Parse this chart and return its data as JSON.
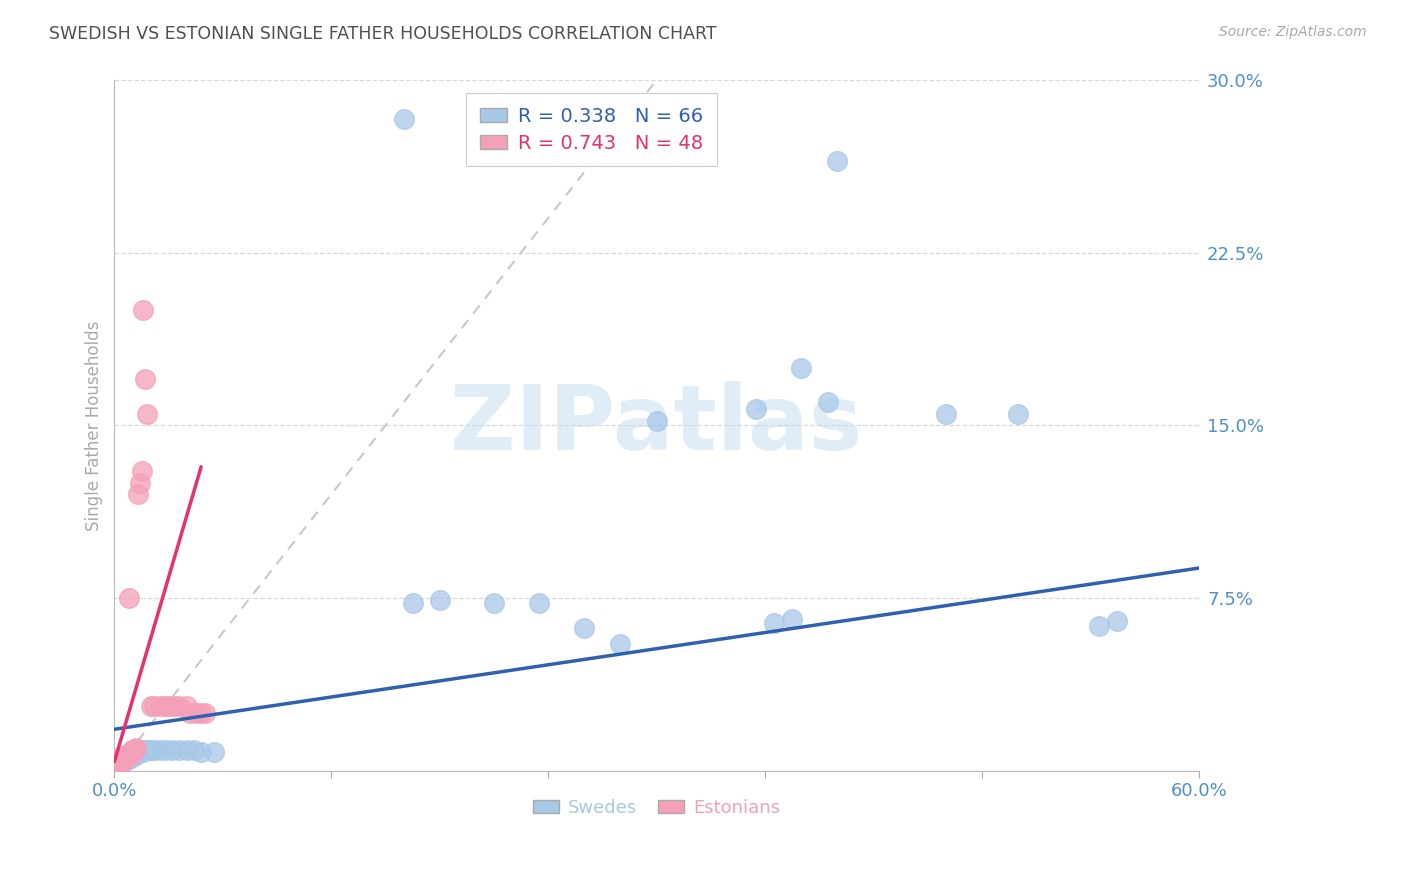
{
  "title": "SWEDISH VS ESTONIAN SINGLE FATHER HOUSEHOLDS CORRELATION CHART",
  "source": "Source: ZipAtlas.com",
  "ylabel": "Single Father Households",
  "xlim": [
    0.0,
    0.6
  ],
  "ylim": [
    0.0,
    0.3
  ],
  "yticks": [
    0.0,
    0.075,
    0.15,
    0.225,
    0.3
  ],
  "xticks": [
    0.0,
    0.12,
    0.24,
    0.36,
    0.48,
    0.6
  ],
  "ytick_labels": [
    "",
    "7.5%",
    "15.0%",
    "22.5%",
    "30.0%"
  ],
  "xtick_labels": [
    "0.0%",
    "",
    "",
    "",
    "",
    "60.0%"
  ],
  "swedes_R": 0.338,
  "swedes_N": 66,
  "estonians_R": 0.743,
  "estonians_N": 48,
  "swede_color": "#a8c8e8",
  "estonian_color": "#f4a0b8",
  "swede_line_color": "#3060b0",
  "estonian_line_color": "#e83070",
  "ref_line_color": "#c8c8c8",
  "background": "#ffffff",
  "grid_color": "#d8d8d8",
  "title_color": "#505050",
  "tick_color": "#5090c8",
  "legend_color_blue": "#3060b0",
  "legend_color_pink": "#e83070",
  "watermark_color": "#c8ddf0",
  "blue_line_x": [
    0.0,
    0.6
  ],
  "blue_line_y": [
    0.018,
    0.088
  ],
  "pink_line_x": [
    0.0,
    0.048
  ],
  "pink_line_y": [
    0.004,
    0.132
  ],
  "diag_line_x": [
    0.0,
    0.3
  ],
  "diag_line_y": [
    0.0,
    0.3
  ],
  "swedes_x": [
    0.001,
    0.001,
    0.002,
    0.002,
    0.003,
    0.003,
    0.003,
    0.004,
    0.004,
    0.004,
    0.005,
    0.005,
    0.005,
    0.006,
    0.006,
    0.006,
    0.007,
    0.007,
    0.007,
    0.008,
    0.008,
    0.008,
    0.009,
    0.009,
    0.01,
    0.01,
    0.01,
    0.011,
    0.011,
    0.012,
    0.012,
    0.013,
    0.014,
    0.014,
    0.015,
    0.016,
    0.018,
    0.019,
    0.02,
    0.022,
    0.025,
    0.028,
    0.032,
    0.036,
    0.04,
    0.044,
    0.048,
    0.055,
    0.165,
    0.18,
    0.21,
    0.235,
    0.26,
    0.28,
    0.3,
    0.355,
    0.365,
    0.375,
    0.4,
    0.46,
    0.5,
    0.545,
    0.555,
    0.16,
    0.38,
    0.395
  ],
  "swedes_y": [
    0.003,
    0.004,
    0.003,
    0.004,
    0.003,
    0.004,
    0.005,
    0.003,
    0.004,
    0.005,
    0.004,
    0.005,
    0.006,
    0.004,
    0.005,
    0.006,
    0.005,
    0.006,
    0.007,
    0.005,
    0.006,
    0.007,
    0.006,
    0.007,
    0.006,
    0.007,
    0.008,
    0.007,
    0.008,
    0.007,
    0.008,
    0.008,
    0.008,
    0.009,
    0.009,
    0.008,
    0.009,
    0.009,
    0.009,
    0.009,
    0.009,
    0.009,
    0.009,
    0.009,
    0.009,
    0.009,
    0.008,
    0.008,
    0.073,
    0.074,
    0.073,
    0.073,
    0.062,
    0.055,
    0.152,
    0.157,
    0.064,
    0.066,
    0.265,
    0.155,
    0.155,
    0.063,
    0.065,
    0.283,
    0.175,
    0.16
  ],
  "estonians_x": [
    0.0,
    0.0,
    0.001,
    0.001,
    0.001,
    0.002,
    0.002,
    0.002,
    0.003,
    0.003,
    0.003,
    0.004,
    0.004,
    0.004,
    0.005,
    0.005,
    0.005,
    0.006,
    0.006,
    0.006,
    0.007,
    0.007,
    0.008,
    0.008,
    0.009,
    0.009,
    0.01,
    0.01,
    0.011,
    0.012,
    0.013,
    0.014,
    0.015,
    0.016,
    0.017,
    0.018,
    0.02,
    0.022,
    0.025,
    0.028,
    0.03,
    0.033,
    0.036,
    0.04,
    0.042,
    0.045,
    0.048,
    0.05
  ],
  "estonians_y": [
    0.003,
    0.004,
    0.002,
    0.003,
    0.004,
    0.003,
    0.004,
    0.005,
    0.003,
    0.004,
    0.005,
    0.004,
    0.005,
    0.006,
    0.004,
    0.005,
    0.006,
    0.005,
    0.006,
    0.007,
    0.006,
    0.007,
    0.007,
    0.075,
    0.007,
    0.008,
    0.008,
    0.009,
    0.009,
    0.01,
    0.12,
    0.125,
    0.13,
    0.2,
    0.17,
    0.155,
    0.028,
    0.028,
    0.028,
    0.028,
    0.028,
    0.028,
    0.028,
    0.028,
    0.025,
    0.025,
    0.025,
    0.025
  ]
}
